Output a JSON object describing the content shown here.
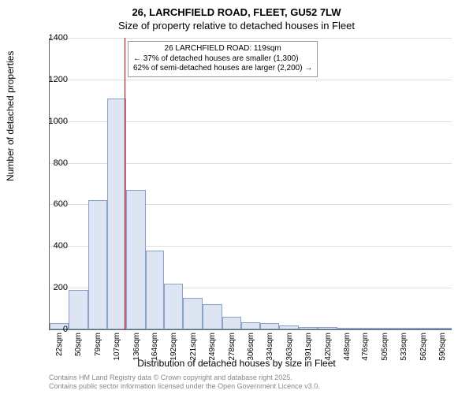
{
  "title1": "26, LARCHFIELD ROAD, FLEET, GU52 7LW",
  "title2": "Size of property relative to detached houses in Fleet",
  "ylabel": "Number of detached properties",
  "xlabel": "Distribution of detached houses by size in Fleet",
  "footer1": "Contains HM Land Registry data © Crown copyright and database right 2025.",
  "footer2": "Contains public sector information licensed under the Open Government Licence v3.0.",
  "callout": {
    "line1": "26 LARCHFIELD ROAD: 119sqm",
    "line2": "← 37% of detached houses are smaller (1,300)",
    "line3": "62% of semi-detached houses are larger (2,200) →"
  },
  "chart": {
    "type": "histogram",
    "bar_fill": "#dde4f2",
    "bar_stroke": "#8aa0c8",
    "marker_color": "#cc0000",
    "grid_color": "#e0e0e0",
    "background": "#ffffff",
    "ylim": [
      0,
      1400
    ],
    "ytick_step": 200,
    "marker_x": 119,
    "xticks": [
      22,
      50,
      79,
      107,
      136,
      164,
      192,
      221,
      249,
      278,
      306,
      334,
      363,
      391,
      420,
      448,
      476,
      505,
      533,
      562,
      590
    ],
    "xtick_suffix": "sqm",
    "xrange": [
      8,
      604
    ],
    "bars": [
      {
        "x0": 8,
        "x1": 36,
        "v": 30
      },
      {
        "x0": 36,
        "x1": 65,
        "v": 190
      },
      {
        "x0": 65,
        "x1": 93,
        "v": 620
      },
      {
        "x0": 93,
        "x1": 121,
        "v": 1110
      },
      {
        "x0": 121,
        "x1": 150,
        "v": 670
      },
      {
        "x0": 150,
        "x1": 178,
        "v": 380
      },
      {
        "x0": 178,
        "x1": 206,
        "v": 220
      },
      {
        "x0": 206,
        "x1": 235,
        "v": 150
      },
      {
        "x0": 235,
        "x1": 264,
        "v": 120
      },
      {
        "x0": 264,
        "x1": 292,
        "v": 60
      },
      {
        "x0": 292,
        "x1": 320,
        "v": 35
      },
      {
        "x0": 320,
        "x1": 348,
        "v": 30
      },
      {
        "x0": 348,
        "x1": 377,
        "v": 20
      },
      {
        "x0": 377,
        "x1": 405,
        "v": 10
      },
      {
        "x0": 405,
        "x1": 434,
        "v": 10
      },
      {
        "x0": 434,
        "x1": 462,
        "v": 5
      },
      {
        "x0": 462,
        "x1": 490,
        "v": 5
      },
      {
        "x0": 490,
        "x1": 519,
        "v": 3
      },
      {
        "x0": 519,
        "x1": 547,
        "v": 2
      },
      {
        "x0": 547,
        "x1": 576,
        "v": 2
      },
      {
        "x0": 576,
        "x1": 604,
        "v": 2
      }
    ]
  }
}
